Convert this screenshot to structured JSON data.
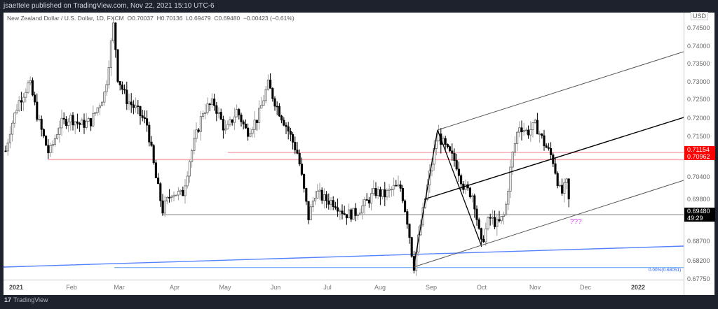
{
  "header": {
    "publish_line": "jsaettele published on TradingView.com, Nov 22, 2021 15:10 UTC-6"
  },
  "legend": {
    "symbol": "New Zealand Dollar / U.S. Dollar, 1D, FXCM",
    "open": "O0.70037",
    "high": "H0.70136",
    "low": "L0.69479",
    "close": "C0.69480",
    "change": "−0.00423 (−0.61%)"
  },
  "price_scale": {
    "currency": "USD",
    "ticks": [
      "0.74500",
      "0.74000",
      "0.73500",
      "0.73000",
      "0.72500",
      "0.72000",
      "0.71500",
      "0.70400",
      "0.69800",
      "0.68700",
      "0.68200",
      "0.67750"
    ],
    "labels": {
      "level_high": "0.71154",
      "level_low": "0.70962",
      "last_price": "0.69480",
      "countdown": "49:29"
    }
  },
  "time_scale": {
    "labels": [
      "2021",
      "Feb",
      "Mar",
      "Apr",
      "May",
      "Jun",
      "Jul",
      "Aug",
      "Sep",
      "Oct",
      "Nov",
      "Dec",
      "2022"
    ]
  },
  "annotations": {
    "question": "???",
    "fib_label": "0.00%(0.68051)"
  },
  "footer": {
    "logo": "17",
    "brand": "TradingView"
  },
  "colors": {
    "resistance": "#f23645",
    "trendline": "#2962ff",
    "annotation": "#e040fb",
    "last_price_bg": "#000000"
  },
  "chart_data": {
    "type": "candlestick",
    "title": "New Zealand Dollar / U.S. Dollar, 1D, FXCM",
    "xlabel": "",
    "ylabel": "USD",
    "ylim": [
      0.6775,
      0.749
    ],
    "grid": false,
    "x": [
      "2021",
      "Feb",
      "Mar",
      "Apr",
      "May",
      "Jun",
      "Jul",
      "Aug",
      "Sep",
      "Oct",
      "Nov",
      "Dec",
      "2022"
    ],
    "ohlc_last": {
      "open": 0.70037,
      "high": 0.70136,
      "low": 0.69479,
      "close": 0.6948,
      "change": -0.00423,
      "change_pct": -0.61
    },
    "approx_path": [
      {
        "date": "2021-01",
        "price": 0.718
      },
      {
        "date": "2021-01-mid",
        "price": 0.73
      },
      {
        "date": "2021-02-early",
        "price": 0.71
      },
      {
        "date": "2021-02-late",
        "price": 0.7465
      },
      {
        "date": "2021-03",
        "price": 0.715
      },
      {
        "date": "2021-03-end",
        "price": 0.694
      },
      {
        "date": "2021-04",
        "price": 0.715
      },
      {
        "date": "2021-05",
        "price": 0.7305
      },
      {
        "date": "2021-06",
        "price": 0.73
      },
      {
        "date": "2021-06-end",
        "price": 0.6925
      },
      {
        "date": "2021-07",
        "price": 0.7
      },
      {
        "date": "2021-08-20",
        "price": 0.6805
      },
      {
        "date": "2021-09-03",
        "price": 0.717
      },
      {
        "date": "2021-09-30",
        "price": 0.686
      },
      {
        "date": "2021-10-21",
        "price": 0.722
      },
      {
        "date": "2021-11-22",
        "price": 0.6948
      }
    ],
    "horizontal_levels": [
      {
        "value": 0.71154,
        "color": "red",
        "label": "0.71154"
      },
      {
        "value": 0.70962,
        "color": "red",
        "label": "0.70962"
      },
      {
        "value": 0.6948,
        "color": "gray",
        "label": "0.69480"
      },
      {
        "value": 0.68051,
        "color": "blue",
        "label": "0.00%(0.68051)"
      }
    ],
    "drawings": [
      "Andrews pitchfork from Aug low / Sep high / Sep-end low",
      "long-term blue trendline",
      "??? annotation at lower pitchfork line"
    ]
  }
}
